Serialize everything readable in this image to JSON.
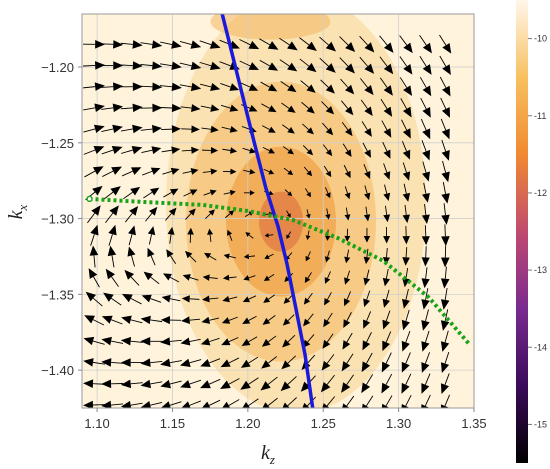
{
  "chart_data": {
    "type": "vector-field",
    "title": "",
    "xlabel": {
      "main": "k",
      "sub": "z"
    },
    "ylabel": {
      "main": "k",
      "sub": "x"
    },
    "xlim": [
      1.09,
      1.35
    ],
    "ylim": [
      -1.425,
      -1.165
    ],
    "xticks": [
      "1.10",
      "1.15",
      "1.20",
      "1.25",
      "1.30",
      "1.35"
    ],
    "yticks": [
      "−1.20",
      "−1.25",
      "−1.30",
      "−1.35",
      "−1.40"
    ],
    "grid": true,
    "vortex_center": {
      "kz": 1.222,
      "kx": -1.302
    },
    "background_min_location": {
      "kz": 1.222,
      "kx": -1.302
    },
    "colorbar": {
      "range": [
        -15.5,
        -9.5
      ],
      "ticks": [
        "-10",
        "-11",
        "-12",
        "-13",
        "-14",
        "-15"
      ],
      "colormap": [
        "#000000",
        "#3a0a5a",
        "#7a2a90",
        "#c04a70",
        "#f08a30",
        "#f8c060",
        "#fff7ea"
      ]
    },
    "series": [
      {
        "kind": "solid-line",
        "color": "#1a1adc",
        "points": [
          [
            1.183,
            -1.165
          ],
          [
            1.193,
            -1.205
          ],
          [
            1.203,
            -1.245
          ],
          [
            1.212,
            -1.28
          ],
          [
            1.22,
            -1.305
          ],
          [
            1.226,
            -1.33
          ],
          [
            1.232,
            -1.36
          ],
          [
            1.238,
            -1.39
          ],
          [
            1.243,
            -1.425
          ]
        ]
      },
      {
        "kind": "dotted-line",
        "color": "#19a319",
        "points": [
          [
            1.095,
            -1.287
          ],
          [
            1.13,
            -1.289
          ],
          [
            1.17,
            -1.291
          ],
          [
            1.2,
            -1.295
          ],
          [
            1.23,
            -1.301
          ],
          [
            1.26,
            -1.313
          ],
          [
            1.29,
            -1.328
          ],
          [
            1.32,
            -1.352
          ],
          [
            1.347,
            -1.383
          ]
        ]
      }
    ],
    "arrow_grid": {
      "kz_values": [
        1.098,
        1.11,
        1.123,
        1.136,
        1.149,
        1.162,
        1.175,
        1.188,
        1.201,
        1.214,
        1.227,
        1.24,
        1.253,
        1.266,
        1.279,
        1.292,
        1.305,
        1.318,
        1.331
      ],
      "kx_values": [
        -1.185,
        -1.199,
        -1.213,
        -1.227,
        -1.241,
        -1.255,
        -1.269,
        -1.283,
        -1.297,
        -1.311,
        -1.325,
        -1.339,
        -1.353,
        -1.367,
        -1.381,
        -1.395,
        -1.409,
        -1.423
      ],
      "color": "#000000"
    }
  }
}
